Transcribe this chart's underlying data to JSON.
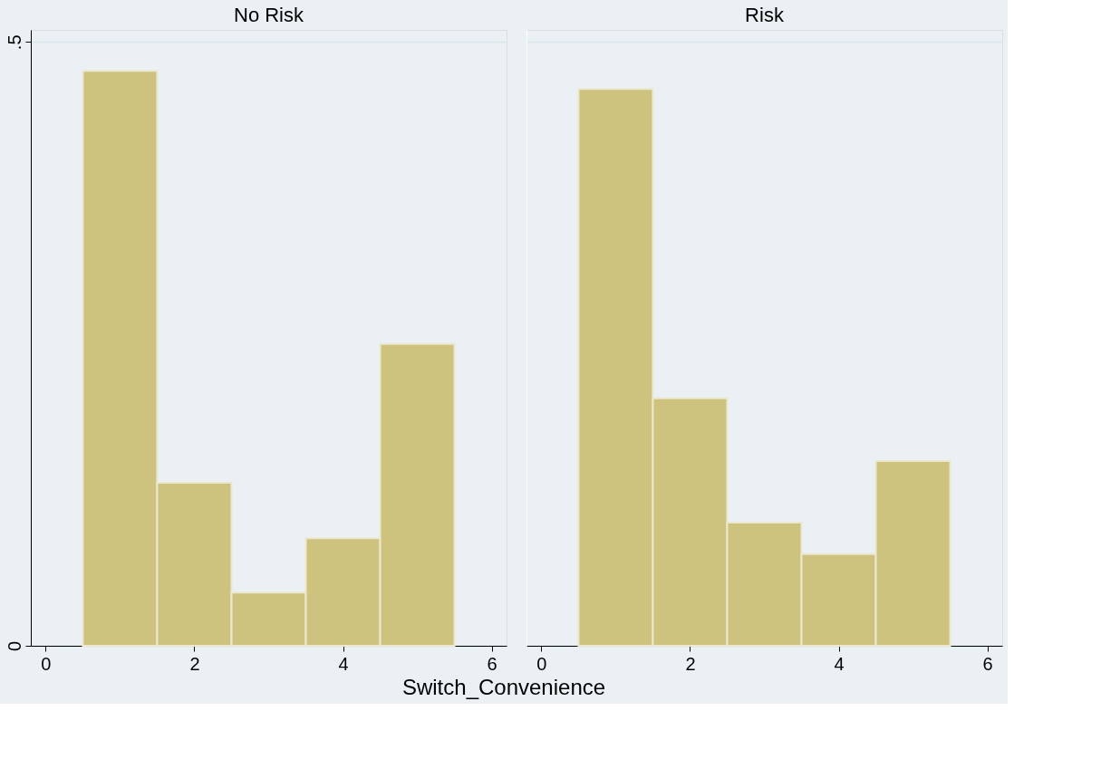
{
  "chart_data": [
    {
      "type": "histogram",
      "title": "No Risk",
      "xlabel": "Switch_Convenience",
      "bins": [
        0.5,
        1.5,
        2.5,
        3.5,
        4.5,
        5.5
      ],
      "values": [
        0.476,
        0.135,
        0.044,
        0.089,
        0.25
      ],
      "color": "#cdc37e",
      "xlim": [
        -0.2,
        6.2
      ],
      "ylim": [
        0,
        0.51
      ],
      "xticks": [
        0,
        2,
        4,
        6
      ],
      "yticks": [
        0,
        {
          "value": 0.5,
          "label": ".5"
        }
      ],
      "grid": "y"
    },
    {
      "type": "histogram",
      "title": "Risk",
      "bins": [
        0.5,
        1.5,
        2.5,
        3.5,
        4.5,
        5.5
      ],
      "values": [
        0.461,
        0.205,
        0.102,
        0.076,
        0.153
      ],
      "color": "#cdc37e",
      "xlim": [
        -0.2,
        6.2
      ],
      "ylim": [
        0,
        0.51
      ],
      "xticks": [
        0,
        2,
        4,
        6
      ],
      "yticks": [
        0,
        0.5
      ],
      "grid": "y",
      "tick_labels": "x"
    }
  ]
}
